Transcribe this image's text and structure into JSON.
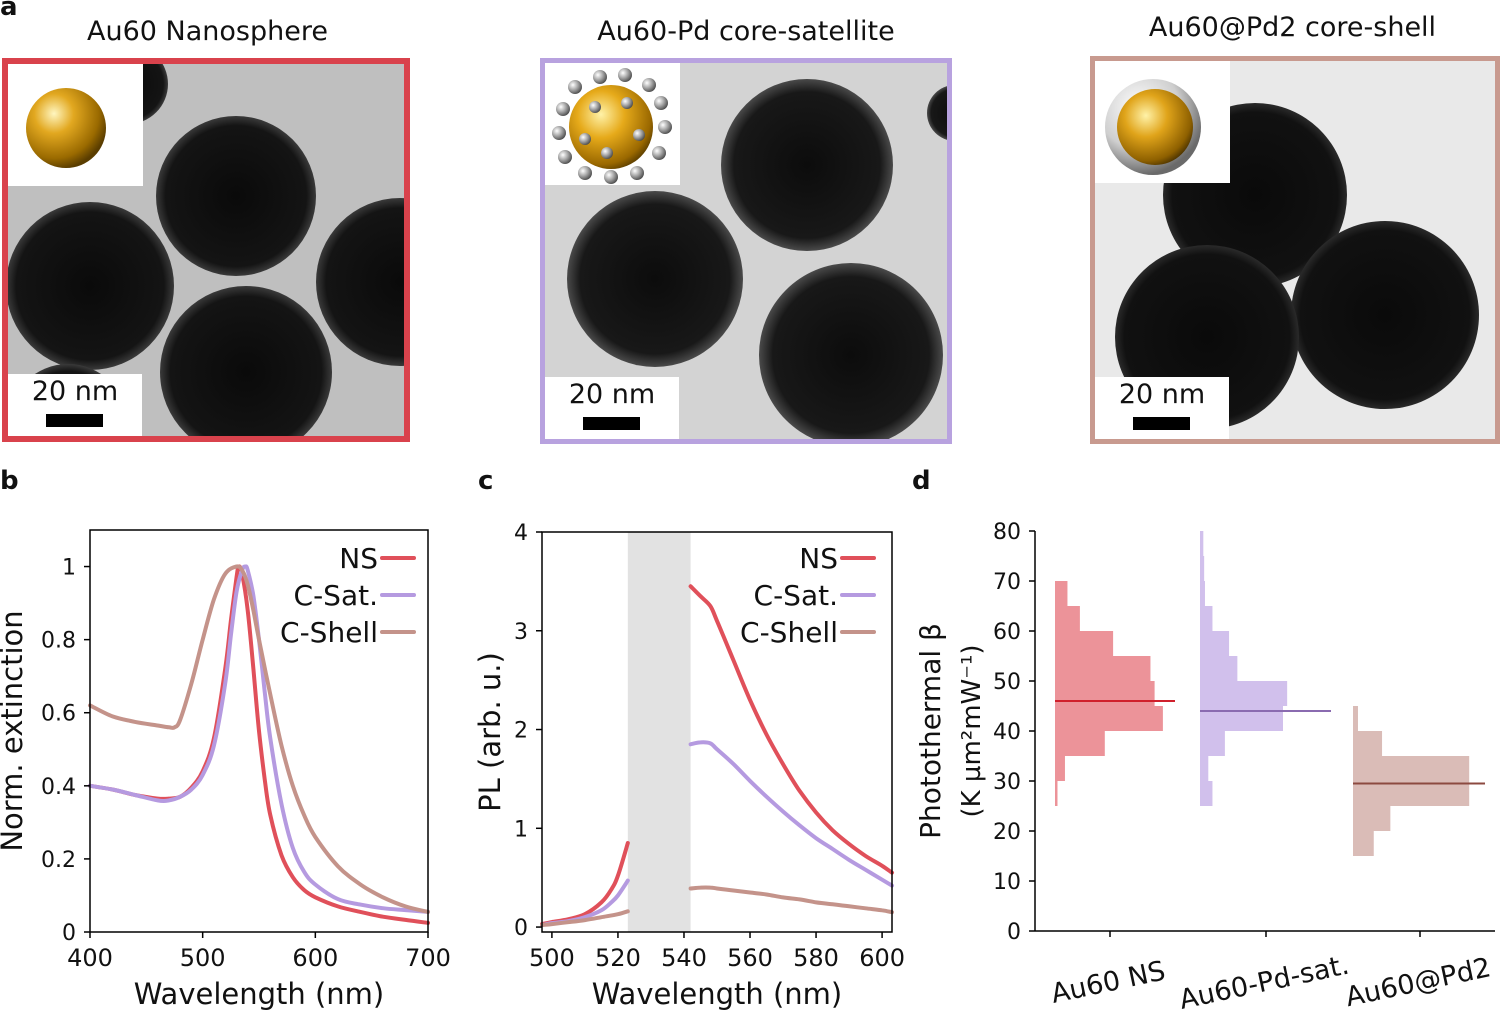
{
  "panels": {
    "a": {
      "letter": "a",
      "images": [
        {
          "title": "Au60 Nanosphere",
          "scale_label": "20 nm",
          "frame_color": "#d9424c",
          "inset": "gold-sphere-icon"
        },
        {
          "title": "Au60-Pd core-satellite",
          "scale_label": "20 nm",
          "frame_color": "#b8a2df",
          "inset": "gold-sphere-with-satellites-icon"
        },
        {
          "title": "Au60@Pd2  core-shell",
          "scale_label": "20 nm",
          "frame_color": "#c89a8f",
          "inset": "gold-sphere-with-shell-icon"
        }
      ]
    },
    "b": {
      "letter": "b"
    },
    "c": {
      "letter": "c"
    },
    "d": {
      "letter": "d"
    }
  },
  "colors": {
    "NS": "#e0505a",
    "CSat": "#b59ae0",
    "CShell": "#c4938a"
  },
  "chart_data": [
    {
      "id": "b",
      "type": "line",
      "xlabel": "Wavelength (nm)",
      "ylabel": "Norm. extinction",
      "xlim": [
        400,
        700
      ],
      "ylim": [
        0,
        1.1
      ],
      "xticks": [
        400,
        500,
        600,
        700
      ],
      "yticks": [
        0,
        0.2,
        0.4,
        0.6,
        0.8,
        1
      ],
      "ytick_labels": [
        "0",
        "0.2",
        "0.4",
        "0.6",
        "0.8",
        "1"
      ],
      "legend": "top-right",
      "series": [
        {
          "name": "NS",
          "color": "#e0505a",
          "x": [
            400,
            420,
            440,
            460,
            470,
            480,
            490,
            500,
            510,
            520,
            525,
            530,
            532,
            535,
            540,
            545,
            550,
            555,
            560,
            570,
            580,
            590,
            600,
            620,
            640,
            660,
            680,
            700
          ],
          "y": [
            0.4,
            0.39,
            0.375,
            0.365,
            0.365,
            0.37,
            0.395,
            0.44,
            0.53,
            0.72,
            0.85,
            0.97,
            1.0,
            0.98,
            0.88,
            0.72,
            0.55,
            0.42,
            0.32,
            0.21,
            0.15,
            0.115,
            0.095,
            0.07,
            0.055,
            0.042,
            0.033,
            0.025
          ]
        },
        {
          "name": "C-Sat.",
          "color": "#b59ae0",
          "x": [
            400,
            420,
            440,
            460,
            470,
            480,
            490,
            500,
            510,
            520,
            525,
            530,
            535,
            538,
            540,
            545,
            550,
            555,
            560,
            570,
            580,
            590,
            600,
            620,
            640,
            660,
            680,
            700
          ],
          "y": [
            0.4,
            0.39,
            0.375,
            0.36,
            0.36,
            0.37,
            0.39,
            0.43,
            0.51,
            0.68,
            0.81,
            0.93,
            0.99,
            1.0,
            0.99,
            0.92,
            0.8,
            0.66,
            0.53,
            0.35,
            0.23,
            0.165,
            0.13,
            0.09,
            0.075,
            0.065,
            0.06,
            0.055
          ]
        },
        {
          "name": "C-Shell",
          "color": "#c4938a",
          "x": [
            400,
            420,
            440,
            460,
            470,
            475,
            480,
            490,
            500,
            510,
            520,
            530,
            535,
            540,
            545,
            550,
            560,
            570,
            580,
            590,
            600,
            620,
            640,
            660,
            680,
            700
          ],
          "y": [
            0.62,
            0.59,
            0.575,
            0.565,
            0.56,
            0.56,
            0.58,
            0.68,
            0.8,
            0.91,
            0.98,
            1.0,
            0.99,
            0.95,
            0.88,
            0.8,
            0.65,
            0.51,
            0.4,
            0.32,
            0.26,
            0.18,
            0.13,
            0.095,
            0.07,
            0.055
          ]
        }
      ]
    },
    {
      "id": "c",
      "type": "line",
      "xlabel": "Wavelength (nm)",
      "ylabel": "PL (arb. u.)",
      "xlim": [
        497,
        603
      ],
      "ylim": [
        -0.05,
        4
      ],
      "xticks": [
        500,
        520,
        540,
        560,
        580,
        600
      ],
      "yticks": [
        0,
        1,
        2,
        3,
        4
      ],
      "masked_region": [
        523,
        542
      ],
      "legend": "top-right",
      "series": [
        {
          "name": "NS",
          "color": "#e0505a",
          "x": [
            497,
            500,
            505,
            510,
            515,
            518,
            520,
            523,
            542,
            545,
            548,
            550,
            555,
            560,
            565,
            570,
            575,
            580,
            585,
            590,
            595,
            600,
            603
          ],
          "y": [
            0.03,
            0.05,
            0.08,
            0.13,
            0.25,
            0.38,
            0.52,
            0.85,
            3.45,
            3.35,
            3.25,
            3.1,
            2.7,
            2.3,
            1.95,
            1.65,
            1.38,
            1.16,
            0.98,
            0.84,
            0.72,
            0.62,
            0.55
          ]
        },
        {
          "name": "C-Sat.",
          "color": "#b59ae0",
          "x": [
            497,
            500,
            505,
            510,
            515,
            518,
            520,
            523,
            542,
            545,
            548,
            550,
            555,
            560,
            565,
            570,
            575,
            580,
            585,
            590,
            595,
            600,
            603
          ],
          "y": [
            0.02,
            0.04,
            0.06,
            0.1,
            0.17,
            0.25,
            0.32,
            0.47,
            1.85,
            1.87,
            1.86,
            1.8,
            1.65,
            1.48,
            1.32,
            1.17,
            1.03,
            0.9,
            0.79,
            0.68,
            0.58,
            0.48,
            0.42
          ]
        },
        {
          "name": "C-Shell",
          "color": "#c4938a",
          "x": [
            497,
            500,
            505,
            510,
            515,
            520,
            523,
            542,
            545,
            548,
            550,
            555,
            560,
            565,
            570,
            575,
            580,
            585,
            590,
            595,
            600,
            603
          ],
          "y": [
            0.02,
            0.03,
            0.05,
            0.07,
            0.1,
            0.13,
            0.16,
            0.39,
            0.4,
            0.4,
            0.39,
            0.37,
            0.35,
            0.33,
            0.3,
            0.28,
            0.25,
            0.23,
            0.21,
            0.19,
            0.17,
            0.15
          ]
        }
      ]
    },
    {
      "id": "d",
      "type": "bar",
      "orientation": "horizontal-histogram",
      "ylabel": "Photothermal β",
      "ylabel_units": "(K µm²mW⁻¹)",
      "ylim": [
        0,
        80
      ],
      "yticks": [
        0,
        10,
        20,
        30,
        40,
        50,
        60,
        70,
        80
      ],
      "categories": [
        "Au60 NS",
        "Au60-Pd-sat.",
        "Au60@Pd2"
      ],
      "bin_width": 5,
      "groups": [
        {
          "name": "Au60 NS",
          "color": "#e0505a",
          "mean": 46,
          "bins": [
            {
              "from": 25,
              "count": 0.3
            },
            {
              "from": 30,
              "count": 1.2
            },
            {
              "from": 35,
              "count": 6.0
            },
            {
              "from": 40,
              "count": 13.0
            },
            {
              "from": 45,
              "count": 12.0
            },
            {
              "from": 50,
              "count": 11.5
            },
            {
              "from": 55,
              "count": 7.0
            },
            {
              "from": 60,
              "count": 3.0
            },
            {
              "from": 65,
              "count": 1.5
            }
          ]
        },
        {
          "name": "Au60-Pd-sat.",
          "color": "#b59ae0",
          "mean": 44,
          "bins": [
            {
              "from": 25,
              "count": 1.5
            },
            {
              "from": 30,
              "count": 1.0
            },
            {
              "from": 35,
              "count": 3.0
            },
            {
              "from": 40,
              "count": 10.0
            },
            {
              "from": 45,
              "count": 10.5
            },
            {
              "from": 50,
              "count": 4.5
            },
            {
              "from": 55,
              "count": 3.5
            },
            {
              "from": 60,
              "count": 1.5
            },
            {
              "from": 65,
              "count": 0.6
            },
            {
              "from": 70,
              "count": 0.5
            },
            {
              "from": 75,
              "count": 0.4
            }
          ]
        },
        {
          "name": "Au60@Pd2",
          "color": "#c4938a",
          "mean": 29.5,
          "bins": [
            {
              "from": 15,
              "count": 2.5
            },
            {
              "from": 20,
              "count": 4.5
            },
            {
              "from": 25,
              "count": 14.0
            },
            {
              "from": 30,
              "count": 14.0
            },
            {
              "from": 35,
              "count": 3.5
            },
            {
              "from": 40,
              "count": 0.6
            }
          ]
        }
      ]
    }
  ]
}
